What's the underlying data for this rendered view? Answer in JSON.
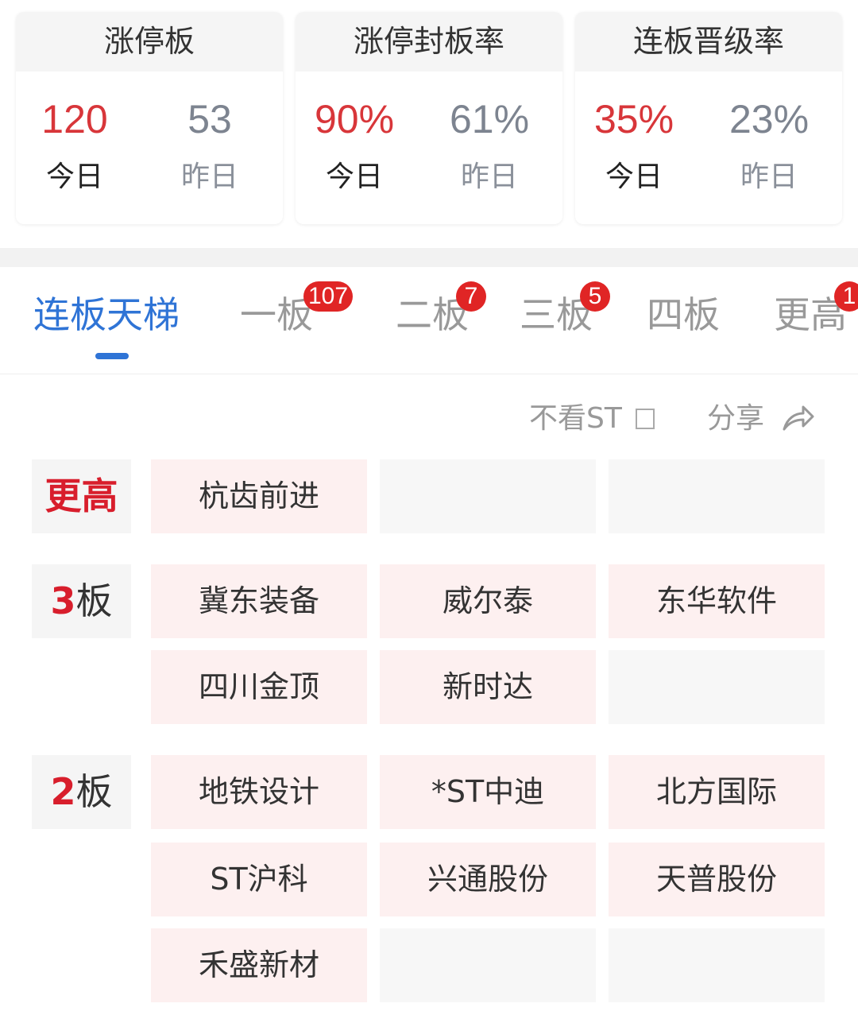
{
  "stats": [
    {
      "title": "涨停板",
      "today": "120",
      "yesterday": "53",
      "today_label": "今日",
      "yesterday_label": "昨日"
    },
    {
      "title": "涨停封板率",
      "today": "90%",
      "yesterday": "61%",
      "today_label": "今日",
      "yesterday_label": "昨日"
    },
    {
      "title": "连板晋级率",
      "today": "35%",
      "yesterday": "23%",
      "today_label": "今日",
      "yesterday_label": "昨日"
    }
  ],
  "tabs": [
    {
      "label": "连板天梯",
      "badge": null,
      "active": true
    },
    {
      "label": "一板",
      "badge": "107"
    },
    {
      "label": "二板",
      "badge": "7"
    },
    {
      "label": "三板",
      "badge": "5"
    },
    {
      "label": "四板",
      "badge": null
    },
    {
      "label": "更高",
      "badge": "1"
    }
  ],
  "filter": {
    "hide_st": "不看ST",
    "hide_st_checked": false,
    "share": "分享"
  },
  "ladder": [
    {
      "label": "更高",
      "label_num": "",
      "label_suffix": "更高",
      "stocks": [
        "杭齿前进"
      ]
    },
    {
      "label_num": "3",
      "label_suffix": "板",
      "stocks": [
        "冀东装备",
        "威尔泰",
        "东华软件",
        "四川金顶",
        "新时达"
      ]
    },
    {
      "label_num": "2",
      "label_suffix": "板",
      "stocks": [
        "地铁设计",
        "*ST中迪",
        "北方国际",
        "ST沪科",
        "兴通股份",
        "天普股份",
        "禾盛新材"
      ]
    }
  ],
  "colors": {
    "up": "#d8363a",
    "accent": "#2f74d6",
    "badge": "#e02525"
  }
}
